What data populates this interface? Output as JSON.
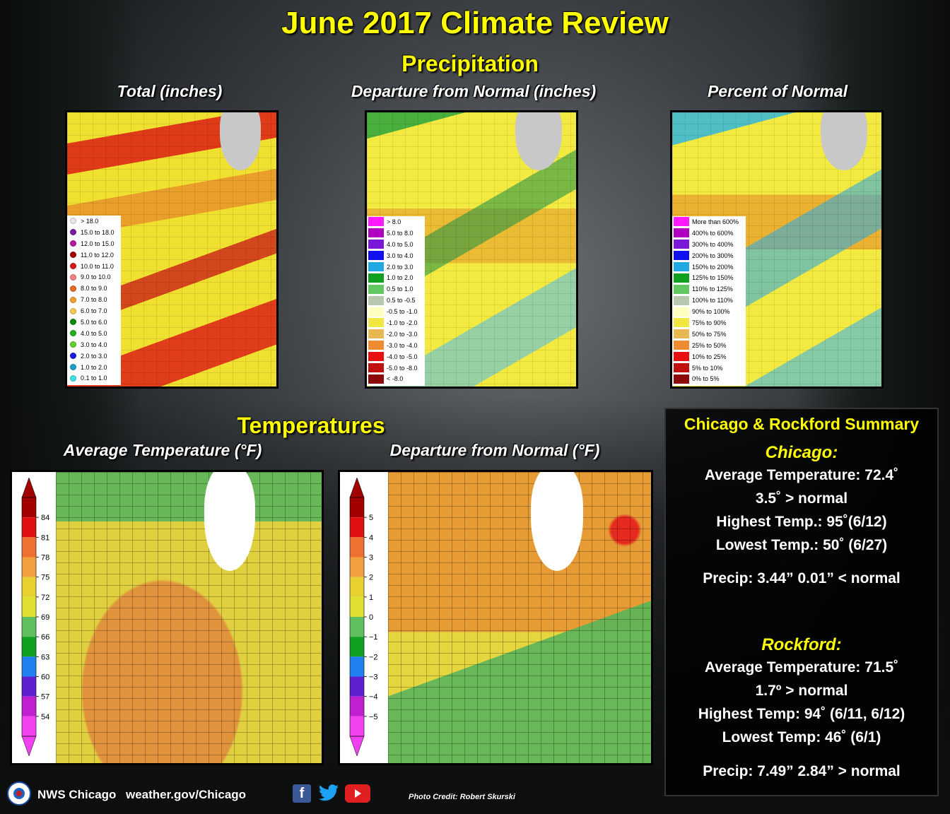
{
  "header": {
    "title": "June 2017 Climate Review",
    "precip_title": "Precipitation",
    "temp_title": "Temperatures"
  },
  "precip_maps": [
    {
      "title": "Total (inches)"
    },
    {
      "title": "Departure from Normal (inches)"
    },
    {
      "title": "Percent of Normal"
    }
  ],
  "legend_total": [
    {
      "label": "> 18.0",
      "color": "#e8e8e8"
    },
    {
      "label": "15.0 to 18.0",
      "color": "#7a1aa0"
    },
    {
      "label": "12.0 to 15.0",
      "color": "#b31aa0"
    },
    {
      "label": "11.0 to 12.0",
      "color": "#a00000"
    },
    {
      "label": "10.0 to 11.0",
      "color": "#d81818"
    },
    {
      "label": "9.0 to 10.0",
      "color": "#f28080"
    },
    {
      "label": "8.0 to 9.0",
      "color": "#e86a20"
    },
    {
      "label": "7.0 to 8.0",
      "color": "#f0a030"
    },
    {
      "label": "6.0 to 7.0",
      "color": "#f5c850"
    },
    {
      "label": "5.0 to 6.0",
      "color": "#0a8a0a"
    },
    {
      "label": "4.0 to 5.0",
      "color": "#20b020"
    },
    {
      "label": "3.0 to 4.0",
      "color": "#60d030"
    },
    {
      "label": "2.0 to 3.0",
      "color": "#1a1ae0"
    },
    {
      "label": "1.0 to 2.0",
      "color": "#1aa0c8"
    },
    {
      "label": "0.1 to 1.0",
      "color": "#40e0e0"
    }
  ],
  "legend_departure": [
    {
      "label": "> 8.0",
      "color": "#ff1aff"
    },
    {
      "label": "5.0 to 8.0",
      "color": "#b000c0"
    },
    {
      "label": "4.0 to 5.0",
      "color": "#7a1ad8"
    },
    {
      "label": "3.0 to 4.0",
      "color": "#1010f0"
    },
    {
      "label": "2.0 to 3.0",
      "color": "#20a8e0"
    },
    {
      "label": "1.0 to 2.0",
      "color": "#10a020"
    },
    {
      "label": "0.5 to 1.0",
      "color": "#60c860"
    },
    {
      "label": "0.5 to -0.5",
      "color": "#b8c8b0"
    },
    {
      "label": "-0.5 to -1.0",
      "color": "#ffffc0"
    },
    {
      "label": "-1.0 to -2.0",
      "color": "#f0e840"
    },
    {
      "label": "-2.0 to -3.0",
      "color": "#e8b850"
    },
    {
      "label": "-3.0 to -4.0",
      "color": "#f08c30"
    },
    {
      "label": "-4.0 to -5.0",
      "color": "#e81010"
    },
    {
      "label": "-5.0 to -8.0",
      "color": "#c01010"
    },
    {
      "label": "< -8.0",
      "color": "#8a0a0a"
    }
  ],
  "legend_percent": [
    {
      "label": "More than 600%",
      "color": "#ff1aff"
    },
    {
      "label": "400% to 600%",
      "color": "#b000c0"
    },
    {
      "label": "300% to 400%",
      "color": "#7a1ad8"
    },
    {
      "label": "200% to 300%",
      "color": "#1010f0"
    },
    {
      "label": "150% to 200%",
      "color": "#20a8e0"
    },
    {
      "label": "125% to 150%",
      "color": "#10a020"
    },
    {
      "label": "110% to 125%",
      "color": "#60c860"
    },
    {
      "label": "100% to 110%",
      "color": "#b8c8b0"
    },
    {
      "label": "90% to 100%",
      "color": "#ffffc0"
    },
    {
      "label": "75% to 90%",
      "color": "#f0e840"
    },
    {
      "label": "50% to 75%",
      "color": "#e8b850"
    },
    {
      "label": "25% to 50%",
      "color": "#f08c30"
    },
    {
      "label": "10% to 25%",
      "color": "#e81010"
    },
    {
      "label": "5% to 10%",
      "color": "#c01010"
    },
    {
      "label": "0% to 5%",
      "color": "#8a0a0a"
    }
  ],
  "temp_maps": [
    {
      "title": "Average Temperature (°F)"
    },
    {
      "title": "Departure from Normal (°F)"
    }
  ],
  "colorbar_avg": {
    "labels": [
      "84",
      "81",
      "78",
      "75",
      "72",
      "69",
      "66",
      "63",
      "60",
      "57",
      "54"
    ],
    "colors": [
      "#a00000",
      "#e01010",
      "#f07030",
      "#f0a040",
      "#e8d030",
      "#e0e030",
      "#60c060",
      "#10a020",
      "#2080f0",
      "#6020d0",
      "#c020d0",
      "#f040f0"
    ]
  },
  "colorbar_dep": {
    "labels": [
      "5",
      "4",
      "3",
      "2",
      "1",
      "0",
      "−1",
      "−2",
      "−3",
      "−4",
      "−5"
    ],
    "colors": [
      "#a00000",
      "#e01010",
      "#f07030",
      "#f0a040",
      "#e8d030",
      "#e0e030",
      "#60c060",
      "#10a020",
      "#2080f0",
      "#6020d0",
      "#c020d0",
      "#f040f0"
    ]
  },
  "summary": {
    "title": "Chicago & Rockford Summary",
    "chicago": {
      "name": "Chicago:",
      "avg": "Average Temperature: 72.4˚",
      "dep": "3.5˚ > normal",
      "high": "Highest Temp.: 95˚(6/12)",
      "low": "Lowest Temp.: 50˚ (6/27)",
      "precip": "Precip: 3.44”  0.01” < normal"
    },
    "rockford": {
      "name": "Rockford:",
      "avg": "Average Temperature: 71.5˚",
      "dep": "1.7º > normal",
      "high": "Highest Temp: 94˚ (6/11, 6/12)",
      "low": "Lowest Temp: 46˚ (6/1)",
      "precip": "Precip: 7.49”  2.84” > normal"
    }
  },
  "footer": {
    "org": "NWS Chicago",
    "url": "weather.gov/Chicago",
    "credit": "Photo Credit: Robert Skurski",
    "social_icons": [
      "facebook-icon",
      "twitter-icon",
      "youtube-icon"
    ]
  }
}
